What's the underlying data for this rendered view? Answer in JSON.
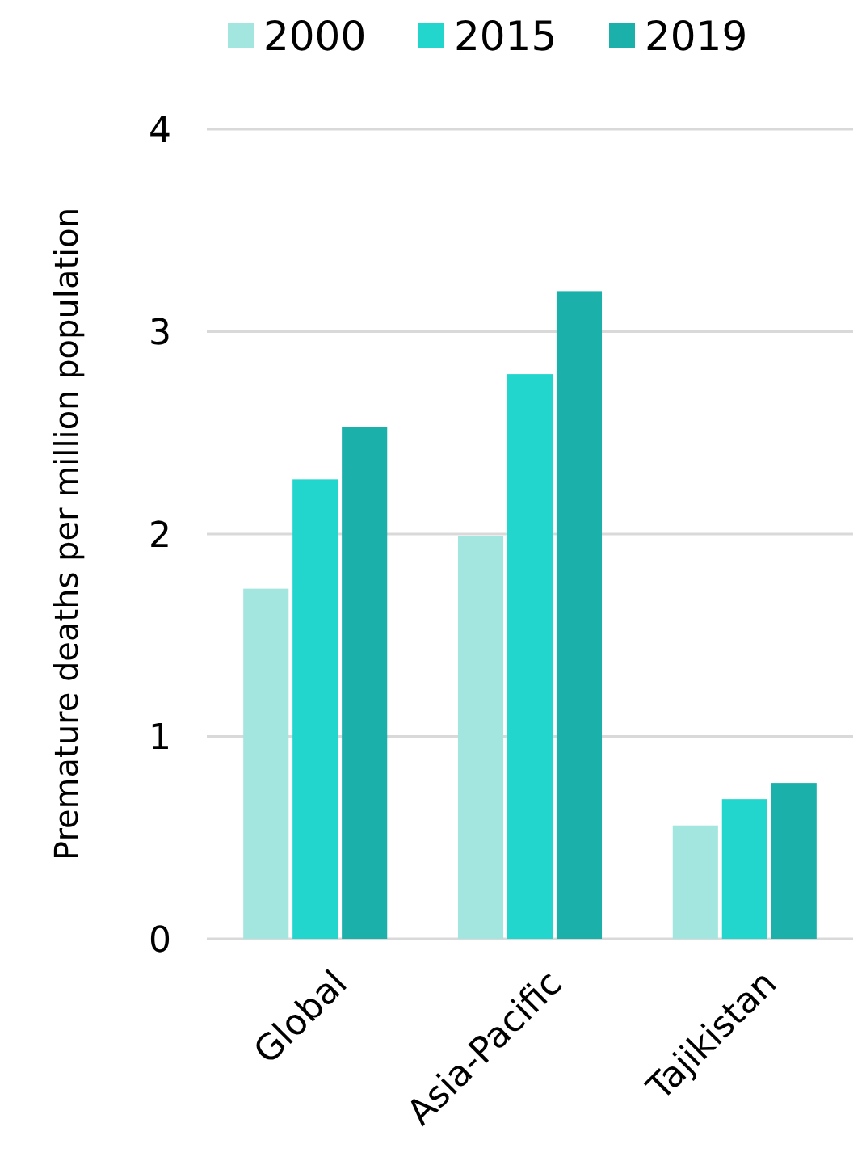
{
  "chart_data": {
    "type": "bar",
    "ylabel": "Premature deaths per million population",
    "categories": [
      "Global",
      "Asia-Pacific",
      "Tajikistan"
    ],
    "series": [
      {
        "name": "2000",
        "color": "#a3e6e0",
        "values": [
          1.73,
          1.99,
          0.56
        ]
      },
      {
        "name": "2015",
        "color": "#22d6cd",
        "values": [
          2.27,
          2.79,
          0.69
        ]
      },
      {
        "name": "2019",
        "color": "#1bb0aa",
        "values": [
          2.53,
          3.2,
          0.77
        ]
      }
    ],
    "ylim": [
      0,
      4
    ],
    "yticks": [
      0,
      1,
      2,
      3,
      4
    ],
    "grid": "y",
    "legend": "top"
  }
}
